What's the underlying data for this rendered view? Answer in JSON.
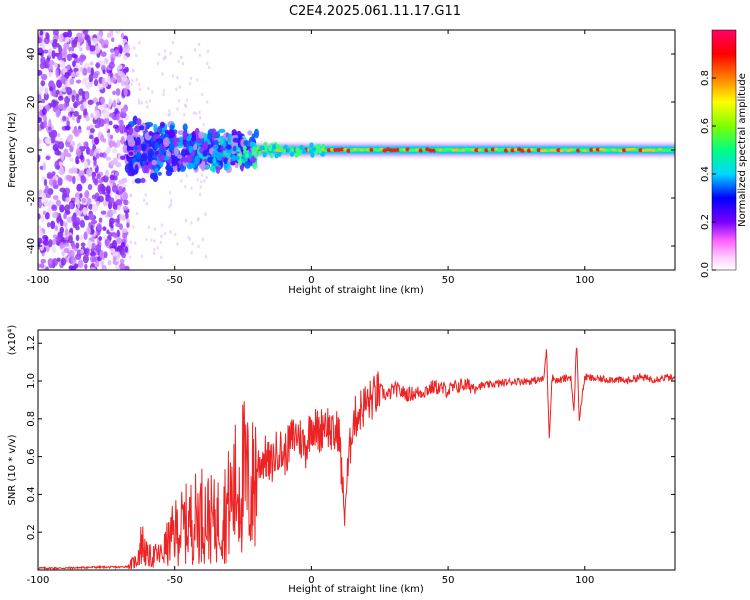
{
  "title": "C2E4.2025.061.11.17.G11",
  "chart_data": [
    {
      "type": "heatmap",
      "xlabel": "Height of straight line (km)",
      "ylabel": "Frequency (Hz)",
      "xlim": [
        -100,
        133
      ],
      "ylim": [
        -50,
        50
      ],
      "x_ticks": [
        -100,
        -50,
        0,
        50,
        100
      ],
      "x_tick_labels": [
        "-100",
        "-50",
        "0",
        "50",
        "100"
      ],
      "y_ticks": [
        -40,
        -20,
        0,
        20,
        40
      ],
      "y_tick_labels": [
        "-40",
        "-20",
        "0",
        "20",
        "40"
      ],
      "colorbar": {
        "label": "Normalized spectral amplitude",
        "range": [
          0,
          1
        ],
        "ticks": [
          0.0,
          0.2,
          0.4,
          0.6,
          0.8
        ],
        "tick_labels": [
          "0.0",
          "0.2",
          "0.4",
          "0.6",
          "0.8"
        ],
        "colors": [
          "#ffffff",
          "#ff66ff",
          "#7a00ff",
          "#0000ff",
          "#00d8ff",
          "#00ff80",
          "#80ff00",
          "#ffff00",
          "#ff8000",
          "#ff0000",
          "#ff0066"
        ]
      },
      "features": {
        "noise_scatter_x_range": [
          -100,
          -67
        ],
        "noise_scatter_freq_range": [
          -50,
          50
        ],
        "transition_x_range": [
          -67,
          -20
        ],
        "transition_freq_halfwidth": 12,
        "carrier_x_range": [
          -20,
          133
        ],
        "carrier_frequency_hz": 0
      }
    },
    {
      "type": "line",
      "xlabel": "Height of straight line (km)",
      "ylabel": "SNR (10 * v/v)",
      "y_multiplier": "(x10⁴)",
      "xlim": [
        -100,
        133
      ],
      "ylim": [
        0,
        1.27
      ],
      "x_ticks": [
        -100,
        -50,
        0,
        50,
        100
      ],
      "x_tick_labels": [
        "-100",
        "-50",
        "0",
        "50",
        "100"
      ],
      "y_ticks": [
        0.2,
        0.4,
        0.6,
        0.8,
        1.0,
        1.2
      ],
      "y_tick_labels": [
        "0.2",
        "0.4",
        "0.6",
        "0.8",
        "1.0",
        "1.2"
      ],
      "series": [
        {
          "color": "#ee2222",
          "x": [
            -100,
            -90,
            -80,
            -70,
            -67,
            -64,
            -62,
            -60,
            -55,
            -50,
            -45,
            -40,
            -35,
            -30,
            -27,
            -25,
            -22,
            -20,
            -17,
            -15,
            -12,
            -10,
            -7,
            -5,
            -2,
            0,
            3,
            5,
            8,
            10,
            12,
            15,
            18,
            20,
            22,
            25,
            28,
            30,
            35,
            40,
            45,
            50,
            55,
            60,
            65,
            70,
            75,
            80,
            85,
            86,
            87,
            88,
            90,
            92,
            95,
            96,
            97,
            98,
            100,
            105,
            110,
            115,
            120,
            125,
            130,
            133
          ],
          "y": [
            0.01,
            0.01,
            0.015,
            0.015,
            0.02,
            0.05,
            0.15,
            0.07,
            0.08,
            0.2,
            0.25,
            0.3,
            0.25,
            0.35,
            0.45,
            0.5,
            0.4,
            0.55,
            0.6,
            0.55,
            0.65,
            0.6,
            0.7,
            0.72,
            0.65,
            0.78,
            0.72,
            0.8,
            0.7,
            0.75,
            0.3,
            0.78,
            0.85,
            0.88,
            0.9,
            0.95,
            0.92,
            0.96,
            0.93,
            0.94,
            0.97,
            0.95,
            0.98,
            0.97,
            0.98,
            0.99,
            1.0,
            1.0,
            1.01,
            1.18,
            0.7,
            1.02,
            1.0,
            1.01,
            1.02,
            0.82,
            1.22,
            0.8,
            1.02,
            1.01,
            1.01,
            1.0,
            1.02,
            1.01,
            1.02,
            1.01
          ]
        }
      ]
    }
  ]
}
